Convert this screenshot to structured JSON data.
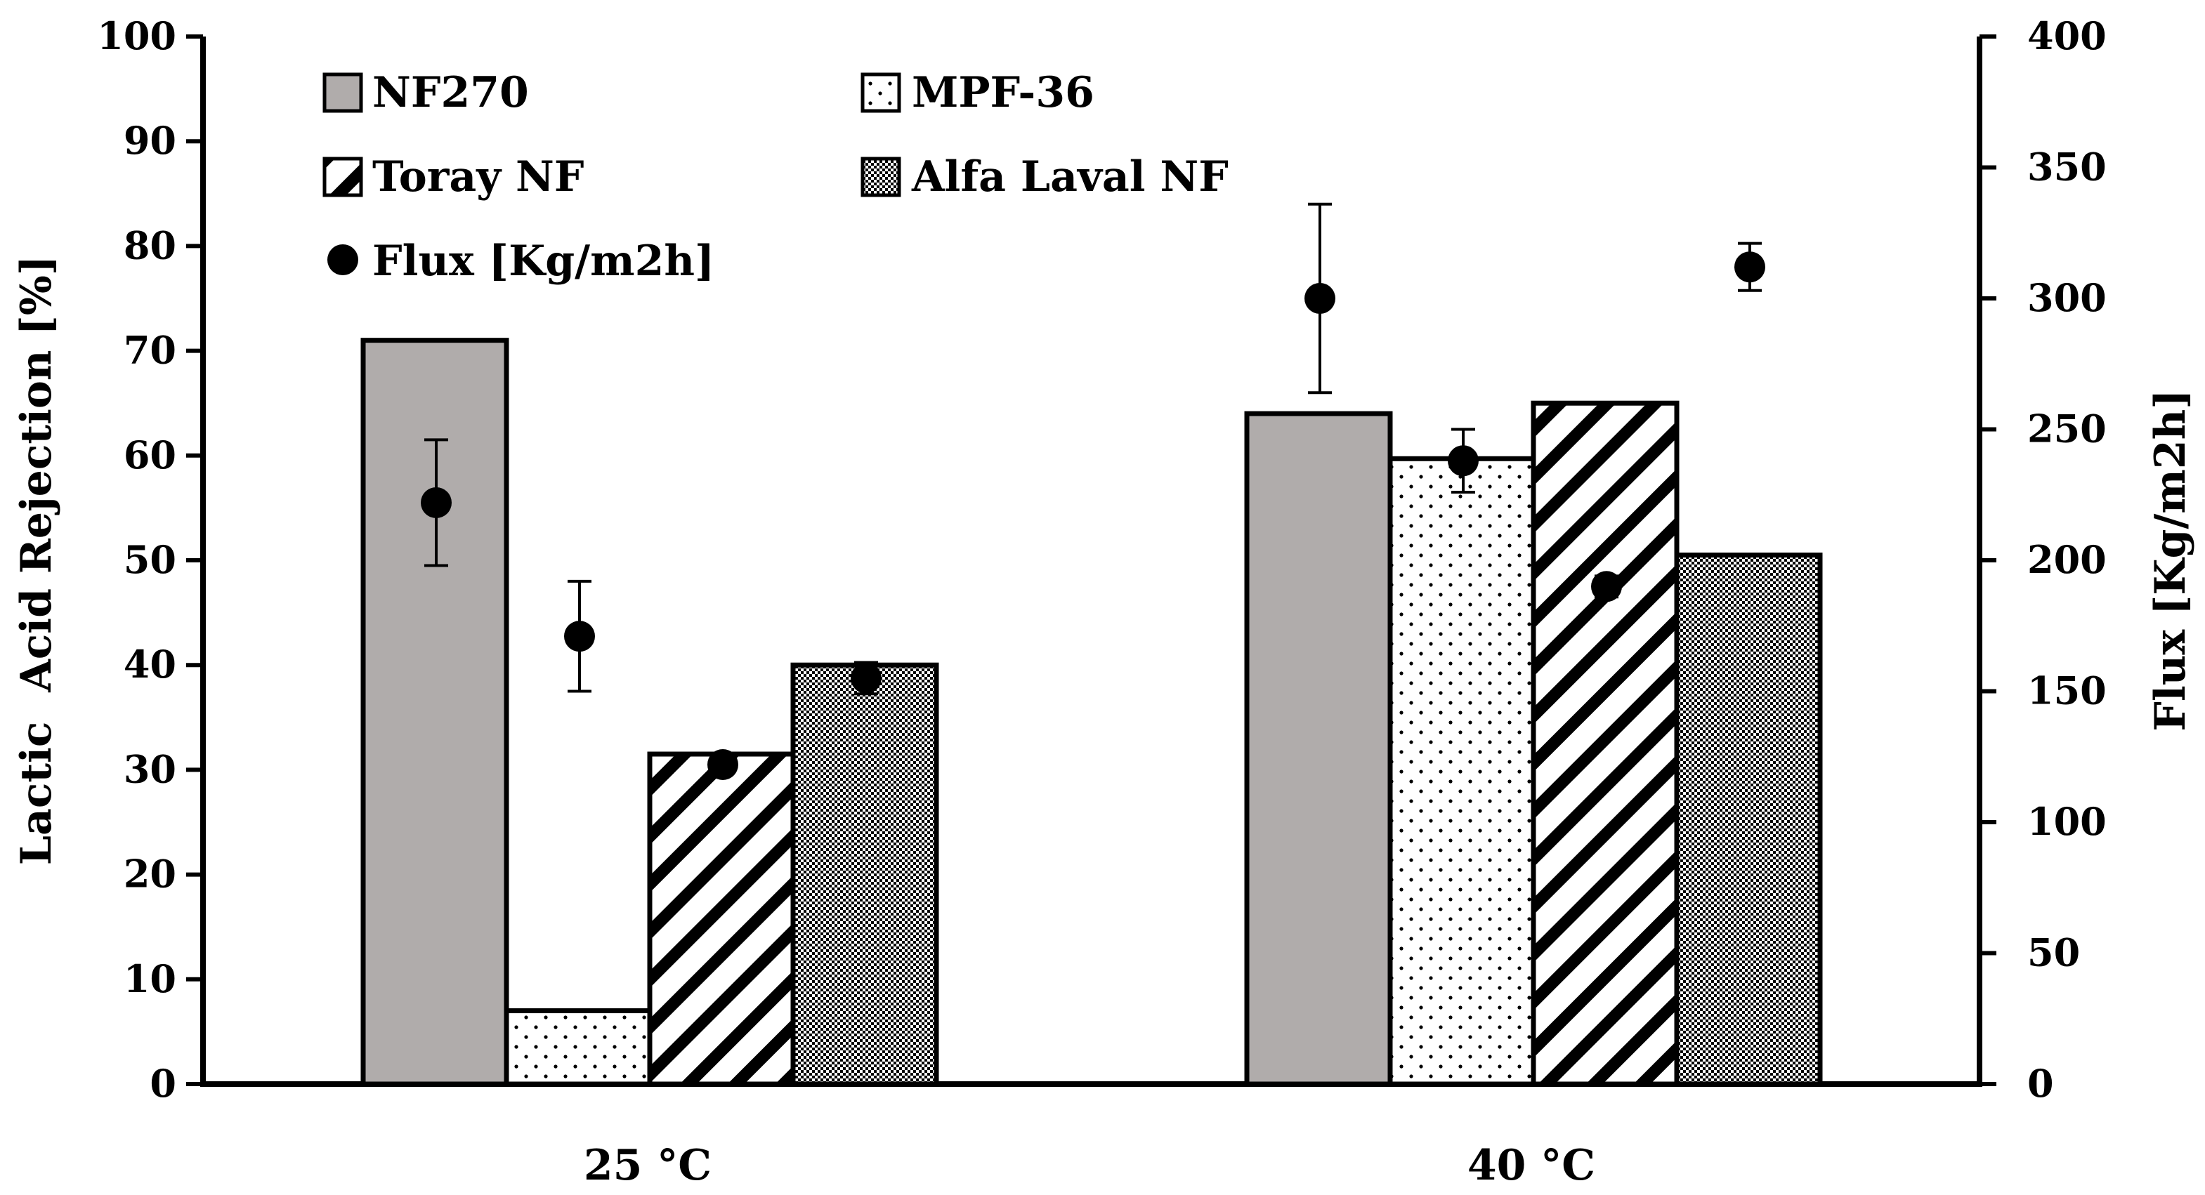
{
  "chart_data": {
    "type": "bar",
    "categories": [
      "25 °C",
      "40 °C"
    ],
    "series": [
      {
        "name": "NF270",
        "values": [
          71,
          64
        ],
        "pattern": "solid-gray"
      },
      {
        "name": "MPF-36",
        "values": [
          7,
          59.7
        ],
        "pattern": "dots"
      },
      {
        "name": "Toray NF",
        "values": [
          31.5,
          65
        ],
        "pattern": "diagonal"
      },
      {
        "name": "Alfa Laval NF",
        "values": [
          40,
          50.5
        ],
        "pattern": "checker"
      }
    ],
    "flux": {
      "name": "Flux [Kg/m2h]",
      "values": [
        [
          222,
          171,
          122,
          155
        ],
        [
          300,
          238,
          190,
          312
        ]
      ],
      "errors": [
        [
          24,
          21,
          0,
          6
        ],
        [
          36,
          12,
          4,
          9
        ]
      ]
    },
    "ylabel": "Lactic  Acid Rejection [%]",
    "y2label": "Flux [Kg/m2h]",
    "ylim": [
      0,
      100
    ],
    "y2lim": [
      0,
      400
    ],
    "yticks": [
      "0",
      "10",
      "20",
      "30",
      "40",
      "50",
      "60",
      "70",
      "80",
      "90",
      "100"
    ],
    "y2ticks": [
      "0",
      "50",
      "100",
      "150",
      "200",
      "250",
      "300",
      "350",
      "400"
    ],
    "legend": [
      "NF270",
      "MPF-36",
      "Toray NF",
      "Alfa Laval NF",
      "Flux [Kg/m2h]"
    ],
    "colors": {
      "bar_gray": "#b0acab",
      "stroke": "#000000",
      "background": "#ffffff"
    }
  }
}
